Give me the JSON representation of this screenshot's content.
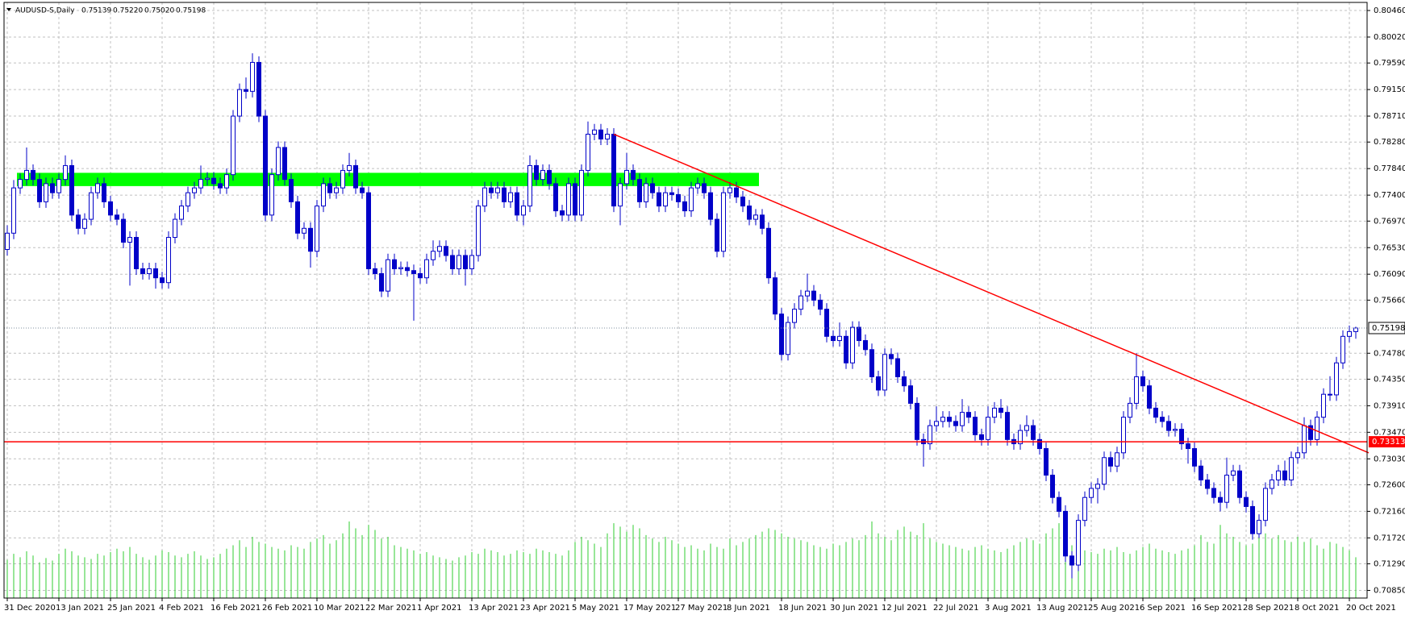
{
  "chart_data": {
    "type": "candlestick",
    "title": "AUDUSD-S,Daily",
    "last_labels": [
      "0.75139",
      "0.75220",
      "0.75020",
      "0.75198"
    ],
    "categories": [
      "31 Dec 2020",
      null,
      null,
      null,
      null,
      null,
      null,
      null,
      "13 Jan 2021",
      null,
      null,
      null,
      null,
      null,
      null,
      null,
      "25 Jan 2021",
      null,
      null,
      null,
      null,
      null,
      null,
      null,
      "4 Feb 2021",
      null,
      null,
      null,
      null,
      null,
      null,
      null,
      "16 Feb 2021",
      null,
      null,
      null,
      null,
      null,
      null,
      null,
      "26 Feb 2021",
      null,
      null,
      null,
      null,
      null,
      null,
      null,
      "10 Mar 2021",
      null,
      null,
      null,
      null,
      null,
      null,
      null,
      "22 Mar 2021",
      null,
      null,
      null,
      null,
      null,
      null,
      null,
      "1 Apr 2021",
      null,
      null,
      null,
      null,
      null,
      null,
      null,
      "13 Apr 2021",
      null,
      null,
      null,
      null,
      null,
      null,
      null,
      "23 Apr 2021",
      null,
      null,
      null,
      null,
      null,
      null,
      null,
      "5 May 2021",
      null,
      null,
      null,
      null,
      null,
      null,
      null,
      "17 May 2021",
      null,
      null,
      null,
      null,
      null,
      null,
      null,
      "27 May 2021",
      null,
      null,
      null,
      null,
      null,
      null,
      null,
      "8 Jun 2021",
      null,
      null,
      null,
      null,
      null,
      null,
      null,
      "18 Jun 2021",
      null,
      null,
      null,
      null,
      null,
      null,
      null,
      "30 Jun 2021",
      null,
      null,
      null,
      null,
      null,
      null,
      null,
      "12 Jul 2021",
      null,
      null,
      null,
      null,
      null,
      null,
      null,
      "22 Jul 2021",
      null,
      null,
      null,
      null,
      null,
      null,
      null,
      "3 Aug 2021",
      null,
      null,
      null,
      null,
      null,
      null,
      null,
      "13 Aug 2021",
      null,
      null,
      null,
      null,
      null,
      null,
      null,
      "25 Aug 2021",
      null,
      null,
      null,
      null,
      null,
      null,
      null,
      "6 Sep 2021",
      null,
      null,
      null,
      null,
      null,
      null,
      null,
      "16 Sep 2021",
      null,
      null,
      null,
      null,
      null,
      null,
      null,
      "28 Sep 2021",
      null,
      null,
      null,
      null,
      null,
      null,
      null,
      "8 Oct 2021",
      null,
      null,
      null,
      null,
      null,
      null,
      null,
      "20 Oct 2021",
      null
    ],
    "open": [
      0.765,
      0.7677,
      0.7752,
      0.7766,
      0.7781,
      0.7766,
      0.7729,
      0.7759,
      0.7744,
      0.7766,
      0.7789,
      0.7707,
      0.7685,
      0.77,
      0.7744,
      0.7759,
      0.7729,
      0.7707,
      0.77,
      0.7662,
      0.767,
      0.7618,
      0.761,
      0.7618,
      0.7603,
      0.7595,
      0.767,
      0.77,
      0.7722,
      0.7744,
      0.7752,
      0.7766,
      0.7768,
      0.7759,
      0.7752,
      0.7774,
      0.7871,
      0.7915,
      0.7912,
      0.796,
      0.7871,
      0.7707,
      0.7774,
      0.7819,
      0.7766,
      0.7729,
      0.7677,
      0.7685,
      0.7647,
      0.7722,
      0.7759,
      0.7744,
      0.7752,
      0.7781,
      0.7789,
      0.7752,
      0.7744,
      0.7618,
      0.761,
      0.7581,
      0.7633,
      0.7618,
      0.762,
      0.7615,
      0.761,
      0.7603,
      0.7633,
      0.7647,
      0.7655,
      0.764,
      0.7618,
      0.764,
      0.7618,
      0.764,
      0.7722,
      0.7752,
      0.7744,
      0.7752,
      0.7729,
      0.7744,
      0.7707,
      0.7722,
      0.7789,
      0.7766,
      0.7781,
      0.7759,
      0.7714,
      0.7707,
      0.7759,
      0.7707,
      0.7781,
      0.7841,
      0.7848,
      0.7833,
      0.7841,
      0.7722,
      0.7759,
      0.7781,
      0.7766,
      0.7729,
      0.7759,
      0.7744,
      0.7722,
      0.7744,
      0.7741,
      0.7729,
      0.7714,
      0.7752,
      0.7759,
      0.7744,
      0.77,
      0.7647,
      0.7744,
      0.7752,
      0.7737,
      0.7722,
      0.77,
      0.7707,
      0.7685,
      0.7603,
      0.7543,
      0.7476,
      0.7529,
      0.7551,
      0.7573,
      0.7581,
      0.7566,
      0.7551,
      0.7506,
      0.7499,
      0.7506,
      0.7462,
      0.7521,
      0.7499,
      0.7484,
      0.7439,
      0.7417,
      0.7476,
      0.7469,
      0.7439,
      0.7424,
      0.7395,
      0.7335,
      0.7328,
      0.7358,
      0.7365,
      0.7372,
      0.7365,
      0.7358,
      0.738,
      0.7372,
      0.7343,
      0.7335,
      0.7372,
      0.7387,
      0.738,
      0.7335,
      0.7328,
      0.735,
      0.7358,
      0.7335,
      0.732,
      0.7276,
      0.7239,
      0.7216,
      0.7142,
      0.7127,
      0.7201,
      0.7239,
      0.7254,
      0.7261,
      0.7305,
      0.7291,
      0.7313,
      0.7372,
      0.7395,
      0.7439,
      0.7424,
      0.7387,
      0.7372,
      0.7365,
      0.735,
      0.7352,
      0.7328,
      0.732,
      0.7291,
      0.7268,
      0.7254,
      0.7239,
      0.7231,
      0.7276,
      0.7283,
      0.7239,
      0.7224,
      0.7179,
      0.7201,
      0.7254,
      0.7268,
      0.7283,
      0.7268,
      0.7305,
      0.7313,
      0.7358,
      0.7335,
      0.7372,
      0.741,
      0.7409,
      0.7462,
      0.7506,
      0.75139
    ],
    "high": [
      0.769,
      0.7765,
      0.7776,
      0.7819,
      0.7791,
      0.7776,
      0.7769,
      0.7769,
      0.7776,
      0.7806,
      0.7799,
      0.7717,
      0.771,
      0.7754,
      0.7769,
      0.7769,
      0.7739,
      0.7717,
      0.771,
      0.768,
      0.768,
      0.7628,
      0.7628,
      0.7628,
      0.7613,
      0.768,
      0.771,
      0.7732,
      0.7754,
      0.7762,
      0.7789,
      0.7778,
      0.7778,
      0.7769,
      0.7784,
      0.7881,
      0.7925,
      0.7935,
      0.7975,
      0.797,
      0.7881,
      0.7784,
      0.7829,
      0.7829,
      0.7776,
      0.7739,
      0.7695,
      0.7695,
      0.7732,
      0.7769,
      0.7769,
      0.7762,
      0.7791,
      0.781,
      0.7799,
      0.7762,
      0.7754,
      0.7628,
      0.762,
      0.7643,
      0.7643,
      0.763,
      0.763,
      0.7625,
      0.762,
      0.7643,
      0.7665,
      0.7665,
      0.7665,
      0.765,
      0.765,
      0.765,
      0.765,
      0.7732,
      0.7762,
      0.7762,
      0.7762,
      0.7762,
      0.7754,
      0.7754,
      0.7732,
      0.7806,
      0.7799,
      0.7791,
      0.7791,
      0.7769,
      0.7724,
      0.7769,
      0.7769,
      0.7791,
      0.7862,
      0.7858,
      0.7858,
      0.7851,
      0.7851,
      0.7769,
      0.781,
      0.7791,
      0.7776,
      0.7769,
      0.7769,
      0.7754,
      0.7754,
      0.7754,
      0.7751,
      0.7739,
      0.7762,
      0.7769,
      0.7769,
      0.7754,
      0.771,
      0.7754,
      0.7762,
      0.7762,
      0.7747,
      0.7732,
      0.7717,
      0.7717,
      0.7695,
      0.7613,
      0.7553,
      0.7539,
      0.7561,
      0.7583,
      0.761,
      0.7591,
      0.7576,
      0.7561,
      0.7516,
      0.7529,
      0.7516,
      0.7531,
      0.7531,
      0.7509,
      0.7494,
      0.7449,
      0.7486,
      0.7486,
      0.7479,
      0.7449,
      0.7434,
      0.7405,
      0.7345,
      0.7368,
      0.739,
      0.7382,
      0.7382,
      0.7375,
      0.7402,
      0.739,
      0.7382,
      0.7353,
      0.739,
      0.7397,
      0.7402,
      0.739,
      0.7345,
      0.736,
      0.7375,
      0.7368,
      0.7345,
      0.733,
      0.7286,
      0.7249,
      0.7226,
      0.715,
      0.7211,
      0.7249,
      0.7264,
      0.7271,
      0.7315,
      0.7315,
      0.7323,
      0.7382,
      0.7405,
      0.7478,
      0.7449,
      0.7434,
      0.7397,
      0.7382,
      0.7375,
      0.7362,
      0.7362,
      0.7338,
      0.733,
      0.7301,
      0.7278,
      0.7264,
      0.7249,
      0.7305,
      0.7293,
      0.7293,
      0.7249,
      0.7234,
      0.7211,
      0.7264,
      0.7278,
      0.7293,
      0.73,
      0.7315,
      0.7323,
      0.7372,
      0.7368,
      0.7382,
      0.742,
      0.744,
      0.7472,
      0.7516,
      0.7524,
      0.7522
    ],
    "low": [
      0.764,
      0.7667,
      0.7742,
      0.7756,
      0.7756,
      0.7719,
      0.7719,
      0.7734,
      0.7734,
      0.7756,
      0.7697,
      0.7675,
      0.7675,
      0.769,
      0.7734,
      0.7719,
      0.7697,
      0.769,
      0.7652,
      0.759,
      0.7608,
      0.76,
      0.76,
      0.7585,
      0.7585,
      0.7585,
      0.766,
      0.769,
      0.7712,
      0.7734,
      0.7742,
      0.7756,
      0.7749,
      0.7742,
      0.7742,
      0.7764,
      0.7861,
      0.79,
      0.7902,
      0.7861,
      0.7697,
      0.7697,
      0.7764,
      0.7756,
      0.7719,
      0.7667,
      0.7667,
      0.762,
      0.7637,
      0.7712,
      0.7734,
      0.7734,
      0.7742,
      0.7771,
      0.7742,
      0.7734,
      0.7608,
      0.76,
      0.7571,
      0.7571,
      0.7608,
      0.7608,
      0.7605,
      0.7532,
      0.7593,
      0.7593,
      0.7623,
      0.7637,
      0.763,
      0.7608,
      0.7608,
      0.759,
      0.7608,
      0.763,
      0.7712,
      0.7734,
      0.7734,
      0.7719,
      0.7719,
      0.7697,
      0.769,
      0.7712,
      0.7756,
      0.7756,
      0.7749,
      0.7704,
      0.7697,
      0.7697,
      0.7697,
      0.7697,
      0.7771,
      0.7831,
      0.7823,
      0.7823,
      0.7712,
      0.769,
      0.7749,
      0.7756,
      0.7719,
      0.7719,
      0.7734,
      0.7712,
      0.7712,
      0.7731,
      0.7719,
      0.7704,
      0.7704,
      0.7742,
      0.7734,
      0.769,
      0.7637,
      0.7637,
      0.7734,
      0.7727,
      0.7712,
      0.769,
      0.769,
      0.7675,
      0.7593,
      0.7533,
      0.7466,
      0.7466,
      0.7519,
      0.7541,
      0.7563,
      0.7556,
      0.7541,
      0.7496,
      0.7489,
      0.7489,
      0.7452,
      0.7452,
      0.7489,
      0.7474,
      0.7429,
      0.7407,
      0.7407,
      0.7459,
      0.7429,
      0.7414,
      0.7385,
      0.7325,
      0.729,
      0.7318,
      0.7348,
      0.7355,
      0.7355,
      0.7348,
      0.7348,
      0.7362,
      0.7333,
      0.7325,
      0.7325,
      0.7362,
      0.737,
      0.7325,
      0.7318,
      0.7318,
      0.734,
      0.7325,
      0.731,
      0.7266,
      0.7229,
      0.7206,
      0.7132,
      0.7105,
      0.7117,
      0.7191,
      0.7229,
      0.7229,
      0.7251,
      0.7281,
      0.7281,
      0.7303,
      0.7362,
      0.7385,
      0.7414,
      0.7377,
      0.7362,
      0.7355,
      0.734,
      0.734,
      0.7318,
      0.7295,
      0.7281,
      0.7258,
      0.7244,
      0.7229,
      0.7216,
      0.7221,
      0.7266,
      0.7229,
      0.7214,
      0.7169,
      0.7172,
      0.7191,
      0.7244,
      0.7258,
      0.7258,
      0.7258,
      0.7295,
      0.7303,
      0.7325,
      0.7325,
      0.7362,
      0.7399,
      0.7399,
      0.7452,
      0.7496,
      0.7502
    ],
    "close": [
      0.7677,
      0.7752,
      0.7766,
      0.7781,
      0.7766,
      0.7729,
      0.7759,
      0.7744,
      0.7766,
      0.7789,
      0.7707,
      0.7685,
      0.77,
      0.7744,
      0.7759,
      0.7729,
      0.7707,
      0.77,
      0.7662,
      0.767,
      0.7618,
      0.761,
      0.7618,
      0.7603,
      0.7595,
      0.767,
      0.77,
      0.7722,
      0.7744,
      0.7752,
      0.7766,
      0.7768,
      0.7759,
      0.7752,
      0.7774,
      0.7871,
      0.7915,
      0.7912,
      0.796,
      0.7871,
      0.7707,
      0.7774,
      0.7819,
      0.7766,
      0.7729,
      0.7677,
      0.7685,
      0.7647,
      0.7722,
      0.7759,
      0.7744,
      0.7752,
      0.7781,
      0.7789,
      0.7752,
      0.7744,
      0.7618,
      0.761,
      0.7581,
      0.7633,
      0.7618,
      0.762,
      0.7615,
      0.761,
      0.7603,
      0.7633,
      0.7647,
      0.7655,
      0.764,
      0.7618,
      0.764,
      0.7618,
      0.764,
      0.7722,
      0.7752,
      0.7744,
      0.7752,
      0.7729,
      0.7744,
      0.7707,
      0.7722,
      0.7789,
      0.7766,
      0.7781,
      0.7759,
      0.7714,
      0.7707,
      0.7759,
      0.7707,
      0.7781,
      0.7841,
      0.7848,
      0.7833,
      0.7841,
      0.7722,
      0.7759,
      0.7781,
      0.7766,
      0.7729,
      0.7759,
      0.7744,
      0.7722,
      0.7744,
      0.7741,
      0.7729,
      0.7714,
      0.7752,
      0.7759,
      0.7744,
      0.77,
      0.7647,
      0.7744,
      0.7752,
      0.7737,
      0.7722,
      0.77,
      0.7707,
      0.7685,
      0.7603,
      0.7543,
      0.7476,
      0.7529,
      0.7551,
      0.7573,
      0.7581,
      0.7566,
      0.7551,
      0.7506,
      0.7499,
      0.7506,
      0.7462,
      0.7521,
      0.7499,
      0.7484,
      0.7439,
      0.7417,
      0.7476,
      0.7469,
      0.7439,
      0.7424,
      0.7395,
      0.7335,
      0.7328,
      0.7358,
      0.7365,
      0.7372,
      0.7365,
      0.7358,
      0.738,
      0.7372,
      0.7343,
      0.7335,
      0.7372,
      0.7387,
      0.738,
      0.7335,
      0.7328,
      0.735,
      0.7358,
      0.7335,
      0.732,
      0.7276,
      0.7239,
      0.7216,
      0.7142,
      0.7127,
      0.7201,
      0.7239,
      0.7254,
      0.7261,
      0.7305,
      0.7291,
      0.7313,
      0.7372,
      0.7395,
      0.7439,
      0.7424,
      0.7387,
      0.7372,
      0.7365,
      0.735,
      0.7352,
      0.7328,
      0.732,
      0.7291,
      0.7268,
      0.7254,
      0.7239,
      0.7231,
      0.7276,
      0.7283,
      0.7239,
      0.7224,
      0.7179,
      0.7201,
      0.7254,
      0.7268,
      0.7283,
      0.7268,
      0.7305,
      0.7313,
      0.7358,
      0.7335,
      0.7372,
      0.741,
      0.7409,
      0.7462,
      0.7506,
      0.75139,
      0.75198
    ],
    "volume": [
      45,
      52,
      48,
      55,
      50,
      42,
      47,
      44,
      52,
      58,
      55,
      50,
      48,
      46,
      52,
      50,
      54,
      58,
      55,
      60,
      52,
      48,
      45,
      50,
      56,
      54,
      50,
      48,
      52,
      55,
      50,
      46,
      48,
      52,
      58,
      62,
      68,
      60,
      72,
      66,
      64,
      60,
      58,
      56,
      62,
      60,
      58,
      66,
      70,
      74,
      64,
      68,
      76,
      90,
      82,
      74,
      86,
      80,
      70,
      72,
      62,
      60,
      58,
      56,
      52,
      54,
      50,
      48,
      46,
      44,
      48,
      50,
      54,
      52,
      58,
      56,
      54,
      50,
      52,
      56,
      54,
      52,
      58,
      56,
      54,
      52,
      50,
      56,
      66,
      72,
      68,
      64,
      60,
      76,
      88,
      84,
      78,
      86,
      82,
      74,
      70,
      66,
      72,
      68,
      64,
      60,
      62,
      58,
      56,
      64,
      60,
      58,
      70,
      62,
      66,
      70,
      74,
      78,
      82,
      80,
      76,
      72,
      70,
      68,
      66,
      62,
      60,
      58,
      64,
      62,
      66,
      70,
      68,
      74,
      90,
      76,
      72,
      68,
      80,
      84,
      78,
      74,
      88,
      70,
      66,
      64,
      62,
      60,
      58,
      56,
      60,
      62,
      58,
      56,
      54,
      58,
      62,
      66,
      70,
      68,
      64,
      76,
      82,
      88,
      66,
      62,
      60,
      56,
      54,
      52,
      58,
      56,
      60,
      54,
      52,
      56,
      60,
      64,
      58,
      56,
      54,
      52,
      56,
      58,
      62,
      74,
      66,
      64,
      86,
      76,
      72,
      66,
      62,
      64,
      82,
      76,
      70,
      74,
      68,
      66,
      72,
      66,
      70,
      62,
      58,
      66,
      64,
      60,
      56,
      48
    ],
    "colors": {
      "bull_fill": "#ffffff",
      "bear_fill": "#0000c8",
      "outline": "#0000c8",
      "volume": "#32cd32"
    },
    "ylim": [
      0.70723,
      0.80594
    ],
    "yticks": [
      {
        "value": 0.8046,
        "label": "0.80460"
      },
      {
        "value": 0.8002,
        "label": "0.80020"
      },
      {
        "value": 0.7959,
        "label": "0.79590"
      },
      {
        "value": 0.7915,
        "label": "0.79150"
      },
      {
        "value": 0.7871,
        "label": "0.78710"
      },
      {
        "value": 0.7828,
        "label": "0.78280"
      },
      {
        "value": 0.7784,
        "label": "0.77840"
      },
      {
        "value": 0.774,
        "label": "0.77400"
      },
      {
        "value": 0.7697,
        "label": "0.76970"
      },
      {
        "value": 0.7653,
        "label": "0.76530"
      },
      {
        "value": 0.7609,
        "label": "0.76090"
      },
      {
        "value": 0.7566,
        "label": "0.75660"
      },
      {
        "value": 0.7478,
        "label": "0.74780"
      },
      {
        "value": 0.7435,
        "label": "0.74350"
      },
      {
        "value": 0.7391,
        "label": "0.73910"
      },
      {
        "value": 0.7347,
        "label": "0.73470"
      },
      {
        "value": 0.7303,
        "label": "0.73030"
      },
      {
        "value": 0.726,
        "label": "0.72600"
      },
      {
        "value": 0.7216,
        "label": "0.72160"
      },
      {
        "value": 0.7172,
        "label": "0.71720"
      },
      {
        "value": 0.7129,
        "label": "0.71290"
      },
      {
        "value": 0.7085,
        "label": "0.70850"
      }
    ],
    "grid": true,
    "last_price": 0.75198,
    "hline": {
      "value": 0.73313,
      "color": "#ff0000"
    },
    "zone": {
      "low": 0.7755,
      "high": 0.7777,
      "start": 2,
      "end": 116,
      "color": "#00ff00"
    },
    "trendline": {
      "x": [
        94,
        211
      ],
      "y": [
        0.7841,
        0.7313
      ],
      "color": "#ff0000"
    }
  }
}
